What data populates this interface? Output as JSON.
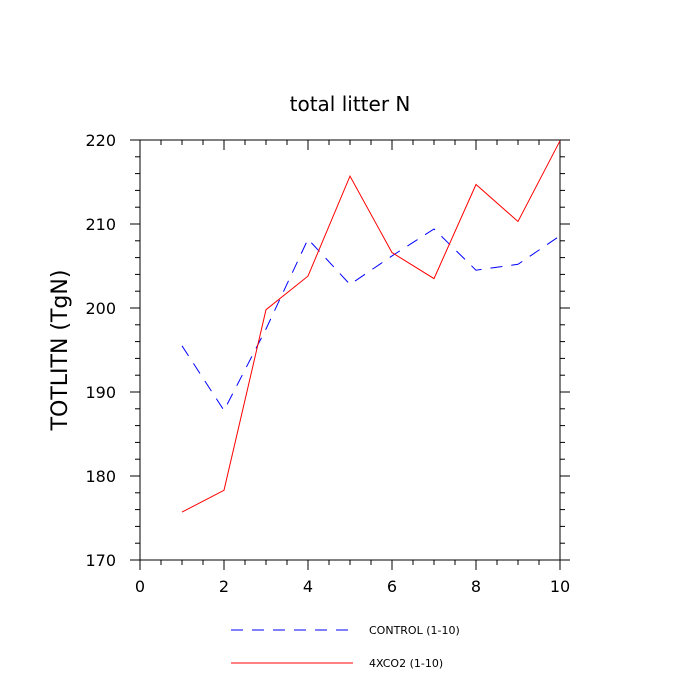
{
  "chart_data": {
    "type": "line",
    "title": "total litter N",
    "xlabel": "",
    "ylabel": "TOTLITN  (TgN)",
    "xlim": [
      0,
      10
    ],
    "ylim": [
      170,
      220
    ],
    "xticks": [
      0,
      2,
      4,
      6,
      8,
      10
    ],
    "yticks": [
      170,
      180,
      190,
      200,
      210,
      220
    ],
    "x_tick_labels": [
      "0",
      "2",
      "4",
      "6",
      "8",
      "10"
    ],
    "y_tick_labels": [
      "170",
      "180",
      "190",
      "200",
      "210",
      "220"
    ],
    "grid": false,
    "legend_position": "bottom",
    "x": [
      1,
      2,
      3,
      4,
      5,
      6,
      7,
      8,
      9,
      10
    ],
    "series": [
      {
        "name": "CONTROL (1-10)",
        "color": "#0000ff",
        "dash": "dashed",
        "values": [
          195.5,
          187.8,
          197.5,
          208.2,
          202.8,
          206.2,
          209.4,
          204.5,
          205.2,
          208.6
        ]
      },
      {
        "name": "4XCO2 (1-10)",
        "color": "#ff0000",
        "dash": "solid",
        "values": [
          175.7,
          178.3,
          199.8,
          203.8,
          215.7,
          206.6,
          203.5,
          214.7,
          210.3,
          219.9
        ]
      }
    ]
  }
}
